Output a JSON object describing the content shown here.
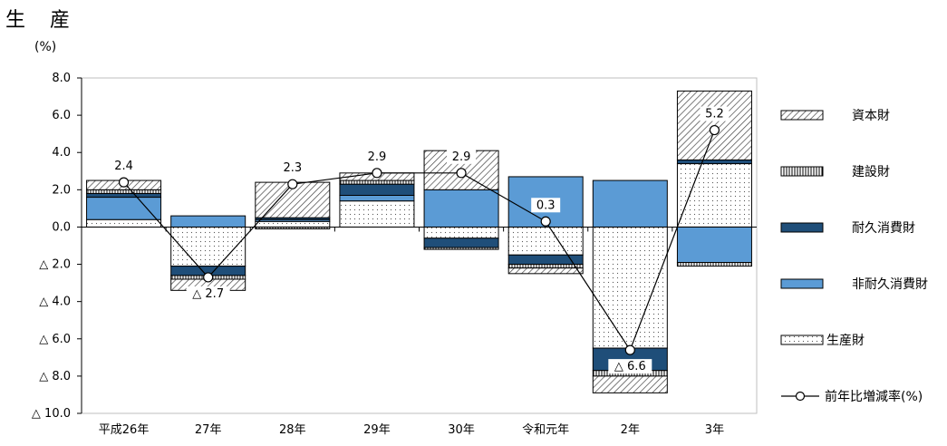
{
  "page": {
    "title": "生 産",
    "y_unit": "(%)"
  },
  "colors": {
    "capital": "#ffffff",
    "construction": "#ffffff",
    "durable": "#1f4e79",
    "nondurable": "#5b9bd5",
    "producer": "#ffffff",
    "line": "#000000",
    "marker_fill": "#ffffff",
    "plot_border": "#bfbfbf"
  },
  "chart_data": {
    "type": "bar",
    "stacked": true,
    "ylim": [
      -10,
      8
    ],
    "yticks": [
      8,
      6,
      4,
      2,
      0,
      -2,
      -4,
      -6,
      -8,
      -10
    ],
    "ytick_labels": [
      "8.0",
      "6.0",
      "4.0",
      "2.0",
      "0.0",
      "△ 2.0",
      "△ 4.0",
      "△ 6.0",
      "△ 8.0",
      "△ 10.0"
    ],
    "categories": [
      "平成26年",
      "27年",
      "28年",
      "29年",
      "30年",
      "令和元年",
      "2年",
      "3年"
    ],
    "series": [
      {
        "key": "producer",
        "name": "生産財",
        "values": [
          0.4,
          -2.1,
          0.3,
          1.4,
          -0.6,
          -1.5,
          -6.5,
          3.4
        ],
        "pattern": "dots"
      },
      {
        "key": "nondurable",
        "name": "非耐久消費財",
        "values": [
          1.2,
          0.6,
          0.1,
          0.3,
          2.0,
          2.7,
          2.5,
          -1.9
        ],
        "pattern": "solid"
      },
      {
        "key": "durable",
        "name": "耐久消費財",
        "values": [
          0.2,
          -0.5,
          0.1,
          0.6,
          -0.5,
          -0.5,
          -1.2,
          0.2
        ],
        "pattern": "solid"
      },
      {
        "key": "construction",
        "name": "建設財",
        "values": [
          0.2,
          -0.2,
          -0.1,
          0.2,
          -0.1,
          -0.2,
          -0.3,
          -0.2
        ],
        "pattern": "vlines"
      },
      {
        "key": "capital",
        "name": "資本財",
        "values": [
          0.5,
          -0.6,
          1.9,
          0.4,
          2.1,
          -0.3,
          -0.9,
          3.7
        ],
        "pattern": "diag"
      }
    ],
    "line": {
      "name": "前年比増減率(%)",
      "values": [
        2.4,
        -2.7,
        2.3,
        2.9,
        2.9,
        0.3,
        -6.6,
        5.2
      ],
      "labels": [
        "2.4",
        "△ 2.7",
        "2.3",
        "2.9",
        "2.9",
        "0.3",
        "△ 6.6",
        "5.2"
      ]
    },
    "legend": [
      {
        "key": "capital",
        "label": "資本財"
      },
      {
        "key": "construction",
        "label": "建設財"
      },
      {
        "key": "durable",
        "label": "耐久消費財"
      },
      {
        "key": "nondurable",
        "label": "非耐久消費財"
      },
      {
        "key": "producer",
        "label": "生産財"
      },
      {
        "key": "line",
        "label": "前年比増減率(%)"
      }
    ],
    "legend_position": "right"
  }
}
